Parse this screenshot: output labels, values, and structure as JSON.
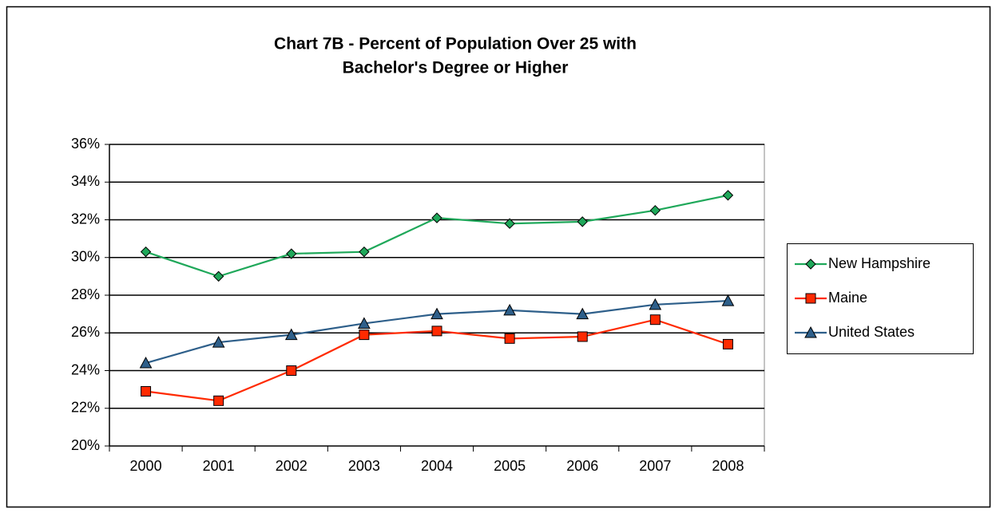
{
  "chart_data": {
    "type": "line",
    "title": [
      "Chart 7B - Percent of Population Over 25 with",
      "Bachelor's Degree or Higher"
    ],
    "categories": [
      "2000",
      "2001",
      "2002",
      "2003",
      "2004",
      "2005",
      "2006",
      "2007",
      "2008"
    ],
    "series": [
      {
        "name": "New Hampshire",
        "color": "#1fa85a",
        "marker": "diamond",
        "values": [
          30.3,
          29.0,
          30.2,
          30.3,
          32.1,
          31.8,
          31.9,
          32.5,
          33.3
        ]
      },
      {
        "name": "Maine",
        "color": "#ff2a00",
        "marker": "square",
        "values": [
          22.9,
          22.4,
          24.0,
          25.9,
          26.1,
          25.7,
          25.8,
          26.7,
          25.4
        ]
      },
      {
        "name": "United States",
        "color": "#2e5f8a",
        "marker": "triangle",
        "values": [
          24.4,
          25.5,
          25.9,
          26.5,
          27.0,
          27.2,
          27.0,
          27.5,
          27.7
        ]
      }
    ],
    "ylim": [
      20,
      36
    ],
    "yticks": [
      {
        "value": 20,
        "label": "20%"
      },
      {
        "value": 22,
        "label": "22%"
      },
      {
        "value": 24,
        "label": "24%"
      },
      {
        "value": 26,
        "label": "26%"
      },
      {
        "value": 28,
        "label": "28%"
      },
      {
        "value": 30,
        "label": "30%"
      },
      {
        "value": 32,
        "label": "32%"
      },
      {
        "value": 34,
        "label": "34%"
      },
      {
        "value": 36,
        "label": "36%"
      }
    ],
    "grid": true,
    "legend": "right"
  }
}
